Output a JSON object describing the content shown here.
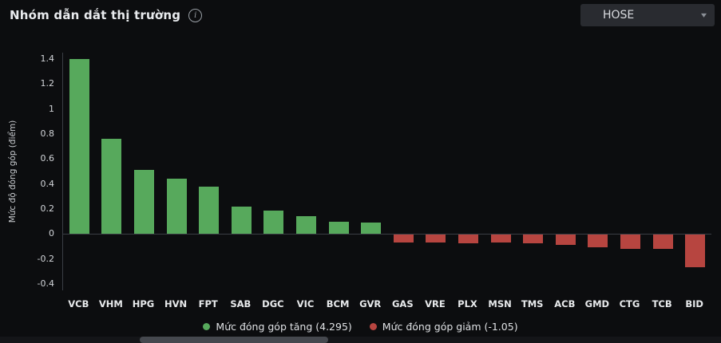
{
  "header": {
    "title": "Nhóm dẫn dắt thị trường",
    "exchange": {
      "selected": "HOSE"
    }
  },
  "chart_data": {
    "type": "bar",
    "title": "Nhóm dẫn dắt thị trường",
    "ylabel": "Mức độ đóng góp (điểm)",
    "xlabel": "",
    "ylim": [
      -0.45,
      1.45
    ],
    "yticks": [
      1.4,
      1.2,
      1,
      0.8,
      0.6,
      0.4,
      0.2,
      0,
      -0.2,
      -0.4
    ],
    "grid": false,
    "legend_position": "bottom",
    "categories": [
      "VCB",
      "VHM",
      "HPG",
      "HVN",
      "FPT",
      "SAB",
      "DGC",
      "VIC",
      "BCM",
      "GVR",
      "GAS",
      "VRE",
      "PLX",
      "MSN",
      "TMS",
      "ACB",
      "GMD",
      "CTG",
      "TCB",
      "BID"
    ],
    "values": [
      1.4,
      0.76,
      0.51,
      0.44,
      0.38,
      0.22,
      0.19,
      0.14,
      0.1,
      0.09,
      -0.06,
      -0.06,
      -0.07,
      -0.06,
      -0.07,
      -0.08,
      -0.1,
      -0.11,
      -0.11,
      -0.26
    ],
    "colors": {
      "positive": "#57a95c",
      "negative": "#b74540"
    },
    "legend": [
      {
        "label": "Mức đóng góp tăng (4.295)",
        "color": "#57a95c"
      },
      {
        "label": "Mức đóng góp giảm (-1.05)",
        "color": "#b74540"
      }
    ]
  }
}
